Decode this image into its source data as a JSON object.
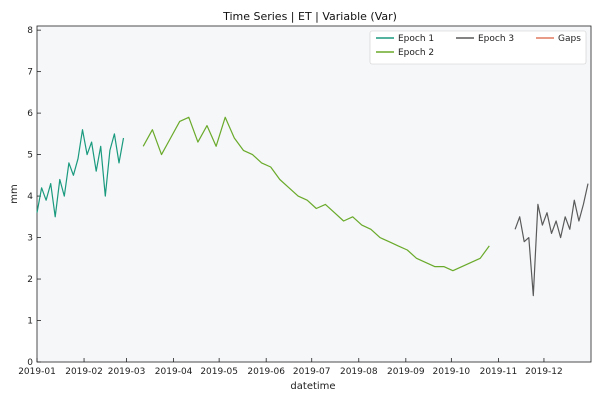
{
  "chart_data": {
    "type": "line",
    "title": "Time Series | ET | Variable (Var)",
    "xlabel": "datetime",
    "ylabel": "mm",
    "xlim": [
      "2019-01-01",
      "2019-12-31"
    ],
    "ylim": [
      0,
      8.1
    ],
    "y_ticks": [
      0,
      1,
      2,
      3,
      4,
      5,
      6,
      7,
      8
    ],
    "x_ticks": [
      "2019-01",
      "2019-02",
      "2019-03",
      "2019-04",
      "2019-05",
      "2019-06",
      "2019-07",
      "2019-08",
      "2019-09",
      "2019-10",
      "2019-11",
      "2019-12"
    ],
    "x_tick_dates": [
      "2019-01-01",
      "2019-02-01",
      "2019-03-01",
      "2019-04-01",
      "2019-05-01",
      "2019-06-01",
      "2019-07-01",
      "2019-08-01",
      "2019-09-01",
      "2019-10-01",
      "2019-11-01",
      "2019-12-01"
    ],
    "grid": false,
    "background": "#f5f7f9",
    "legend_position": "top-right",
    "series": [
      {
        "name": "Epoch 1",
        "color": "#1a9a7e",
        "x": [
          "2019-01-01",
          "2019-01-04",
          "2019-01-07",
          "2019-01-10",
          "2019-01-13",
          "2019-01-16",
          "2019-01-19",
          "2019-01-22",
          "2019-01-25",
          "2019-01-28",
          "2019-01-31",
          "2019-02-03",
          "2019-02-06",
          "2019-02-09",
          "2019-02-12",
          "2019-02-15",
          "2019-02-18",
          "2019-02-21",
          "2019-02-24",
          "2019-02-27"
        ],
        "y": [
          3.6,
          4.2,
          3.9,
          4.3,
          3.5,
          4.4,
          4.0,
          4.8,
          4.5,
          4.9,
          5.6,
          5.0,
          5.3,
          4.6,
          5.2,
          4.0,
          5.1,
          5.5,
          4.8,
          5.4
        ]
      },
      {
        "name": "Epoch 2",
        "color": "#6aaa2a",
        "x": [
          "2019-03-12",
          "2019-03-18",
          "2019-03-24",
          "2019-03-30",
          "2019-04-05",
          "2019-04-11",
          "2019-04-17",
          "2019-04-23",
          "2019-04-29",
          "2019-05-05",
          "2019-05-11",
          "2019-05-17",
          "2019-05-23",
          "2019-05-29",
          "2019-06-04",
          "2019-06-10",
          "2019-06-16",
          "2019-06-22",
          "2019-06-28",
          "2019-07-04",
          "2019-07-10",
          "2019-07-16",
          "2019-07-22",
          "2019-07-28",
          "2019-08-03",
          "2019-08-09",
          "2019-08-15",
          "2019-08-21",
          "2019-08-27",
          "2019-09-02",
          "2019-09-08",
          "2019-09-14",
          "2019-09-20",
          "2019-09-26",
          "2019-10-02",
          "2019-10-08",
          "2019-10-14",
          "2019-10-20",
          "2019-10-26"
        ],
        "y": [
          5.2,
          5.6,
          5.0,
          5.4,
          5.8,
          5.9,
          5.3,
          5.7,
          5.2,
          5.9,
          5.4,
          5.1,
          5.0,
          4.8,
          4.7,
          4.4,
          4.2,
          4.0,
          3.9,
          3.7,
          3.8,
          3.6,
          3.4,
          3.5,
          3.3,
          3.2,
          3.0,
          2.9,
          2.8,
          2.7,
          2.5,
          2.4,
          2.3,
          2.3,
          2.2,
          2.3,
          2.4,
          2.5,
          2.8
        ]
      },
      {
        "name": "Epoch 3",
        "color": "#5a5a5a",
        "x": [
          "2019-11-12",
          "2019-11-15",
          "2019-11-18",
          "2019-11-21",
          "2019-11-24",
          "2019-11-27",
          "2019-11-30",
          "2019-12-03",
          "2019-12-06",
          "2019-12-09",
          "2019-12-12",
          "2019-12-15",
          "2019-12-18",
          "2019-12-21",
          "2019-12-24",
          "2019-12-27",
          "2019-12-30"
        ],
        "y": [
          3.2,
          3.5,
          2.9,
          3.0,
          1.6,
          3.8,
          3.3,
          3.6,
          3.1,
          3.4,
          3.0,
          3.5,
          3.2,
          3.9,
          3.4,
          3.8,
          4.3
        ]
      },
      {
        "name": "Gaps",
        "color": "#e07a5f",
        "x": [],
        "y": []
      }
    ]
  }
}
